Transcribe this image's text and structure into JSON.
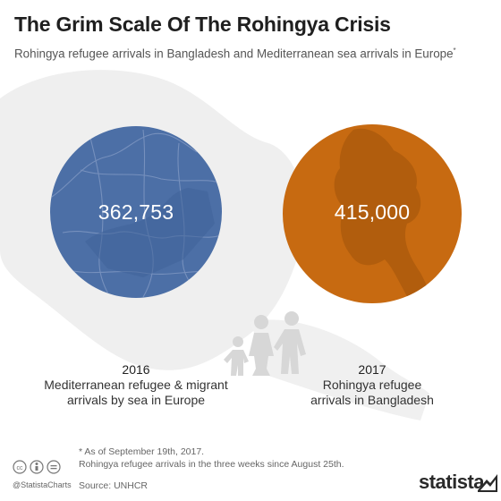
{
  "title": "The Grim Scale Of The Rohingya Crisis",
  "subtitle": "Rohingya refugee arrivals in Bangladesh and Mediterranean sea arrivals in Europe",
  "subtitle_mark": "*",
  "chart_data": {
    "type": "bubble",
    "title": "The Grim Scale Of The Rohingya Crisis",
    "items": [
      {
        "value": 362753,
        "value_label": "362,753",
        "year": "2016",
        "label_lines": [
          "Mediterranean refugee & migrant",
          "arrivals by sea in Europe"
        ],
        "color": "#4c6fa6",
        "map": "Europe"
      },
      {
        "value": 415000,
        "value_label": "415,000",
        "year": "2017",
        "label_lines": [
          "Rohingya refugee",
          "arrivals in Bangladesh"
        ],
        "color": "#c76a11",
        "map": "Myanmar"
      }
    ]
  },
  "footnote": [
    "* As of September 19th, 2017.",
    "Rohingya refugee arrivals in the three weeks since August 25th."
  ],
  "source": "Source: UNHCR",
  "handle": "@StatistaCharts",
  "logo": "statista",
  "icons": [
    "cc-icon",
    "by-icon",
    "equals-icon",
    "family-silhouette-icon",
    "statista-logo-icon"
  ]
}
